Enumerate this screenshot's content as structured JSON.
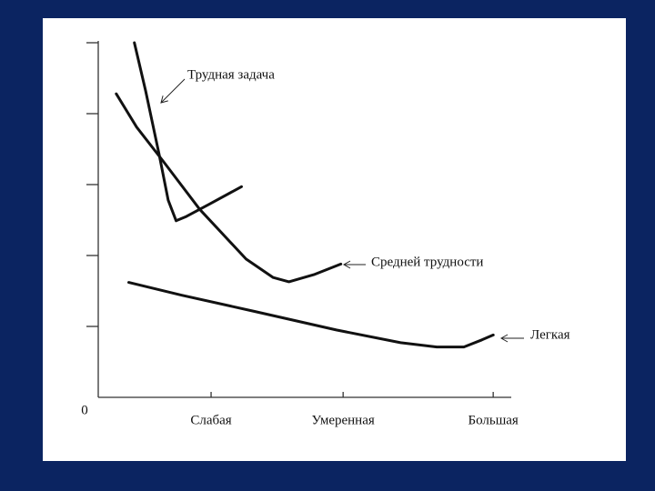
{
  "chart_data": {
    "type": "line",
    "origin_label": "0",
    "xlim": [
      0,
      3.66
    ],
    "xticks": [
      {
        "value": 1,
        "label": "Слабая"
      },
      {
        "value": 2.17,
        "label": "Умеренная"
      },
      {
        "value": 3.5,
        "label": "Большая"
      }
    ],
    "ylim": [
      0,
      5
    ],
    "yticks": [
      1,
      2,
      3,
      4,
      5
    ],
    "grid": false,
    "series": [
      {
        "name": "Трудная задача",
        "color": "#111111",
        "x": [
          0.32,
          0.42,
          0.54,
          0.62,
          0.69,
          0.78,
          0.98,
          1.27
        ],
        "values": [
          5.0,
          4.32,
          3.42,
          2.78,
          2.49,
          2.55,
          2.72,
          2.97
        ]
      },
      {
        "name": "Средней трудности",
        "color": "#111111",
        "x": [
          0.16,
          0.34,
          0.58,
          0.9,
          1.31,
          1.55,
          1.69,
          1.91,
          2.15
        ],
        "values": [
          4.28,
          3.81,
          3.32,
          2.65,
          1.95,
          1.69,
          1.63,
          1.73,
          1.88
        ]
      },
      {
        "name": "Легкая",
        "color": "#111111",
        "x": [
          0.27,
          0.74,
          1.39,
          2.11,
          2.68,
          3.0,
          3.24,
          3.4,
          3.5
        ],
        "values": [
          1.62,
          1.44,
          1.21,
          0.95,
          0.77,
          0.71,
          0.71,
          0.81,
          0.88
        ]
      }
    ]
  }
}
